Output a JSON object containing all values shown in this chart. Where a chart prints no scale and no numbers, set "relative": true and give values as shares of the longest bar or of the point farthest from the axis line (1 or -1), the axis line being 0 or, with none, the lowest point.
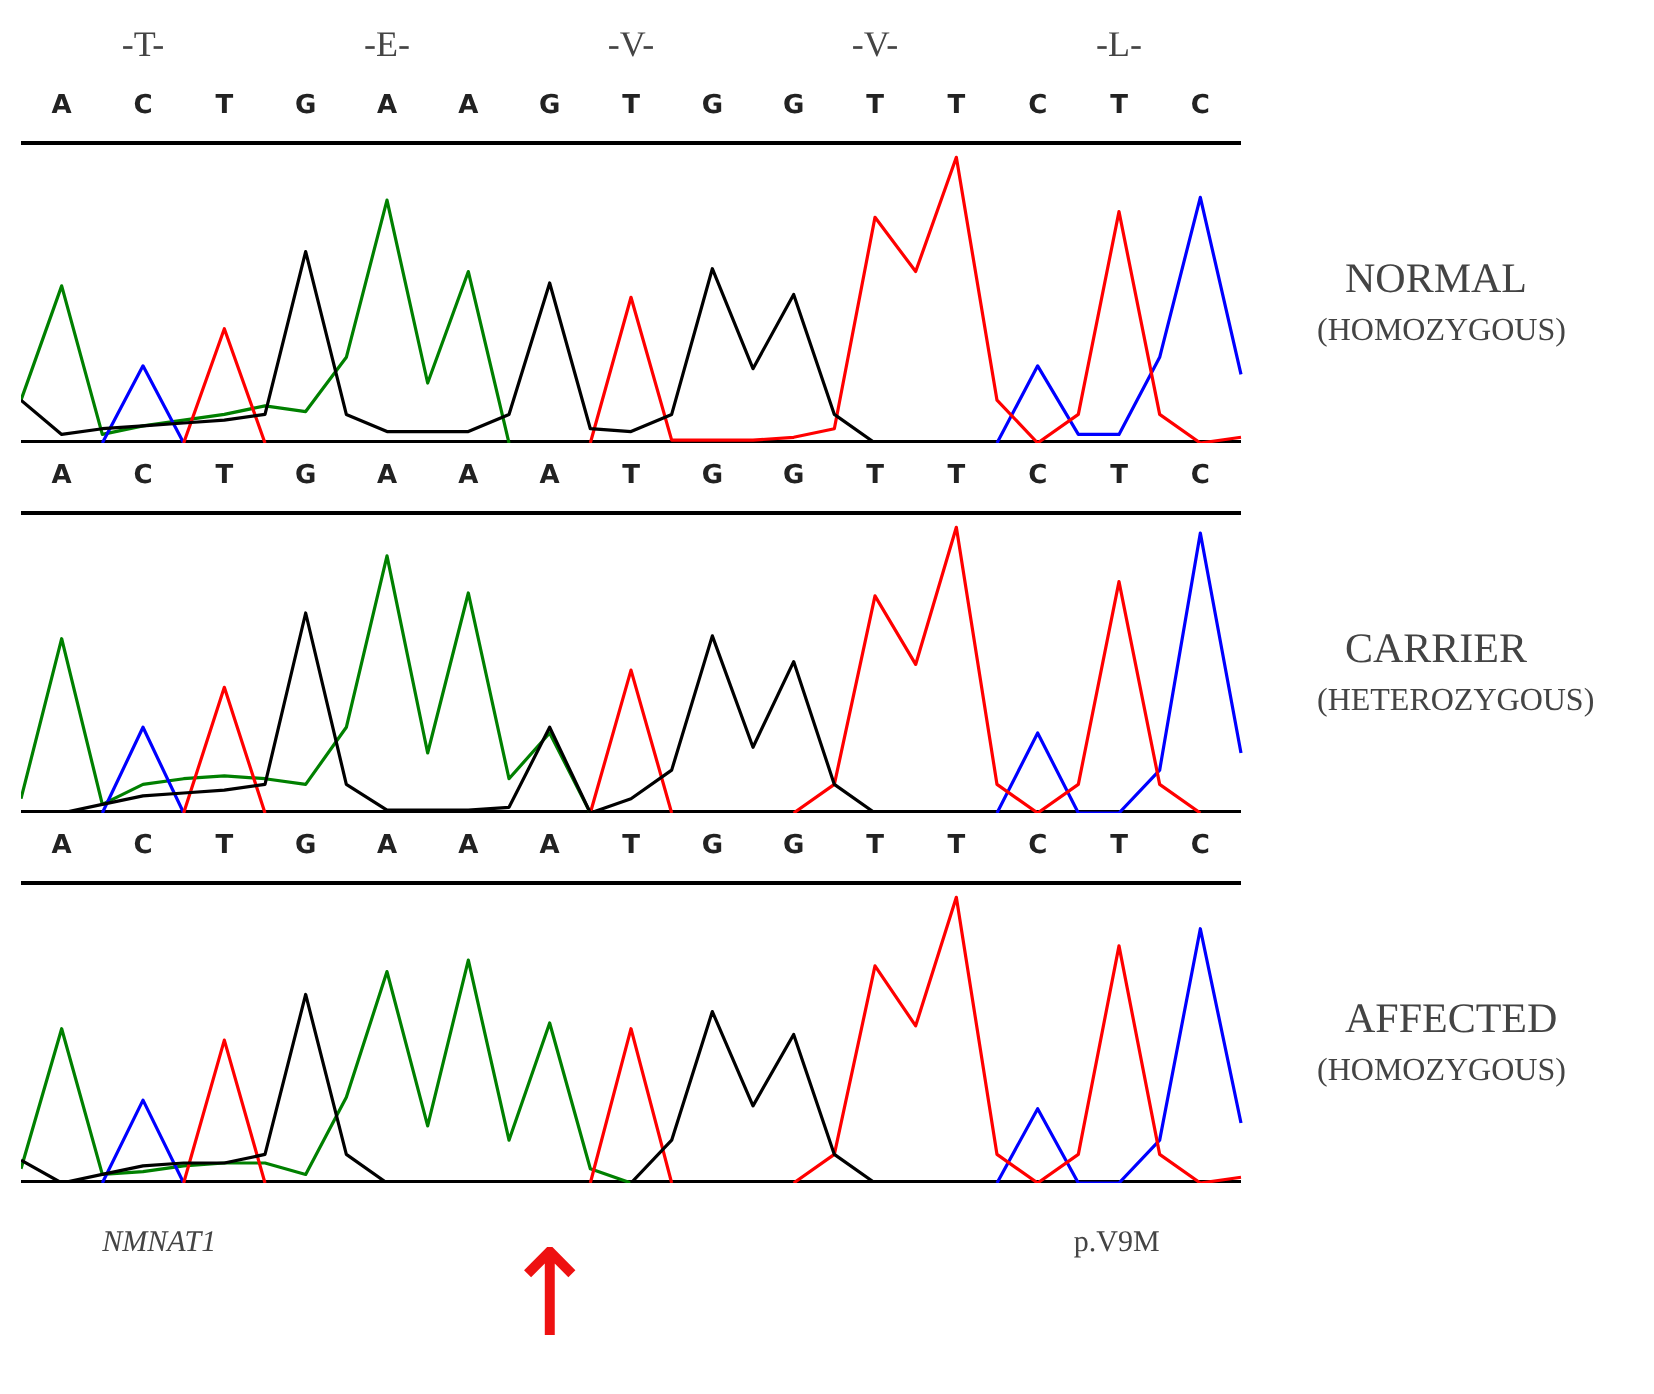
{
  "chart_data": [
    {
      "type": "line",
      "relative": true,
      "tick_labels": "x",
      "grid": false,
      "marker": "none",
      "line_style": "solid",
      "categories": [
        null,
        "A",
        null,
        "C",
        null,
        "T",
        null,
        "G",
        null,
        "A",
        null,
        "A",
        null,
        "G",
        null,
        "T",
        null,
        "G",
        null,
        "G",
        null,
        "T",
        null,
        "T",
        null,
        "C",
        null,
        "T",
        null,
        "C",
        null
      ],
      "annotations": [
        "NORMAL",
        "(HOMOZYGOUS)",
        "-T-",
        "-E-",
        "-V-",
        "-V-",
        "-L-"
      ],
      "series": [
        {
          "color": "#008000",
          "values": [
            0.15,
            0.55,
            0.03,
            0.06,
            0.08,
            0.1,
            0.13,
            0.11,
            0.3,
            0.85,
            0.21,
            0.6,
            0,
            null,
            null,
            null,
            null,
            null,
            null,
            null,
            null,
            null,
            null,
            null,
            null,
            null,
            null,
            null,
            null,
            null,
            null
          ]
        },
        {
          "color": "#0000ff",
          "values": [
            null,
            null,
            0,
            0.27,
            0,
            null,
            null,
            null,
            null,
            null,
            null,
            null,
            null,
            null,
            null,
            null,
            null,
            null,
            null,
            null,
            null,
            null,
            null,
            null,
            0,
            0.27,
            0.03,
            0.03,
            0.3,
            0.86,
            0.24
          ]
        },
        {
          "color": "#ff0000",
          "values": [
            null,
            null,
            null,
            null,
            0,
            0.4,
            0,
            null,
            null,
            null,
            null,
            null,
            null,
            null,
            0,
            0.51,
            0.01,
            0.01,
            0.01,
            0.02,
            0.05,
            0.79,
            0.6,
            1.0,
            0.15,
            0,
            0.1,
            0.81,
            0.1,
            0,
            0.02
          ]
        },
        {
          "color": "#000000",
          "values": [
            0.15,
            0.03,
            0.05,
            0.06,
            0.07,
            0.08,
            0.1,
            0.67,
            0.1,
            0.04,
            0.04,
            0.04,
            0.1,
            0.56,
            0.05,
            0.04,
            0.1,
            0.61,
            0.26,
            0.52,
            0.1,
            0,
            null,
            null,
            null,
            null,
            null,
            null,
            null,
            null,
            null
          ]
        }
      ]
    },
    {
      "type": "line",
      "relative": true,
      "tick_labels": "x",
      "grid": false,
      "marker": "none",
      "line_style": "solid",
      "annotations": [
        "CARRIER",
        "(HETEROZYGOUS)"
      ],
      "categories": [
        null,
        "A",
        null,
        "C",
        null,
        "T",
        null,
        "G",
        null,
        "A",
        null,
        "A",
        null,
        "A",
        null,
        "T",
        null,
        "G",
        null,
        "G",
        null,
        "T",
        null,
        "T",
        null,
        "C",
        null,
        "T",
        null,
        "C",
        null
      ],
      "series": [
        {
          "color": "#008000",
          "values": [
            0.05,
            0.61,
            0.03,
            0.1,
            0.12,
            0.13,
            0.12,
            0.1,
            0.3,
            0.9,
            0.21,
            0.77,
            0.12,
            0.28,
            0,
            null,
            null,
            null,
            null,
            null,
            null,
            null,
            null,
            null,
            null,
            null,
            null,
            null,
            null,
            null,
            null
          ]
        },
        {
          "color": "#0000ff",
          "values": [
            null,
            null,
            0,
            0.3,
            0,
            null,
            null,
            null,
            null,
            null,
            null,
            null,
            null,
            null,
            null,
            null,
            null,
            null,
            null,
            null,
            null,
            null,
            null,
            null,
            0,
            0.28,
            0,
            0,
            0.15,
            0.98,
            0.21
          ]
        },
        {
          "color": "#ff0000",
          "values": [
            null,
            null,
            null,
            null,
            0,
            0.44,
            0,
            null,
            null,
            null,
            null,
            null,
            null,
            null,
            0,
            0.5,
            0,
            null,
            null,
            0,
            0.1,
            0.76,
            0.52,
            1.0,
            0.1,
            0,
            0.1,
            0.81,
            0.1,
            0,
            null
          ]
        },
        {
          "color": "#000000",
          "values": [
            null,
            0,
            0.03,
            0.06,
            0.07,
            0.08,
            0.1,
            0.7,
            0.1,
            0.01,
            0.01,
            0.01,
            0.02,
            0.3,
            0,
            0.05,
            0.15,
            0.62,
            0.23,
            0.53,
            0.1,
            0,
            null,
            null,
            null,
            null,
            null,
            null,
            null,
            null,
            null
          ]
        }
      ]
    },
    {
      "type": "line",
      "relative": true,
      "tick_labels": "x",
      "grid": false,
      "marker": "none",
      "line_style": "solid",
      "categories": [
        null,
        "A",
        null,
        "C",
        null,
        "T",
        null,
        "G",
        null,
        "A",
        null,
        "A",
        null,
        "A",
        null,
        "T",
        null,
        "G",
        null,
        "G",
        null,
        "T",
        null,
        "T",
        null,
        "C",
        null,
        "T",
        null,
        "C",
        null
      ],
      "annotations": [
        "AFFECTED",
        "(HOMOZYGOUS)",
        "NMNAT1",
        "p.V9M",
        "↑"
      ],
      "series": [
        {
          "color": "#008000",
          "values": [
            0.05,
            0.54,
            0.03,
            0.04,
            0.06,
            0.07,
            0.07,
            0.03,
            0.3,
            0.74,
            0.2,
            0.78,
            0.15,
            0.56,
            0.05,
            0,
            null,
            null,
            null,
            null,
            null,
            null,
            null,
            null,
            null,
            null,
            null,
            null,
            null,
            null,
            null
          ]
        },
        {
          "color": "#0000ff",
          "values": [
            null,
            null,
            0,
            0.29,
            0,
            null,
            null,
            null,
            null,
            null,
            null,
            null,
            null,
            null,
            null,
            null,
            null,
            null,
            null,
            null,
            null,
            null,
            null,
            null,
            0,
            0.26,
            0,
            0,
            0.15,
            0.89,
            0.21
          ]
        },
        {
          "color": "#ff0000",
          "values": [
            null,
            null,
            null,
            null,
            0,
            0.5,
            0,
            null,
            null,
            null,
            null,
            null,
            null,
            null,
            0,
            0.54,
            0,
            null,
            null,
            0,
            0.1,
            0.76,
            0.55,
            1.0,
            0.1,
            0,
            0.1,
            0.83,
            0.1,
            0,
            0.02
          ]
        },
        {
          "color": "#000000",
          "values": [
            0.08,
            0,
            0.03,
            0.06,
            0.07,
            0.07,
            0.1,
            0.66,
            0.1,
            0,
            null,
            null,
            null,
            null,
            null,
            0,
            0.15,
            0.6,
            0.27,
            0.52,
            0.1,
            0,
            null,
            null,
            null,
            null,
            null,
            null,
            null,
            null,
            null
          ]
        }
      ]
    }
  ]
}
